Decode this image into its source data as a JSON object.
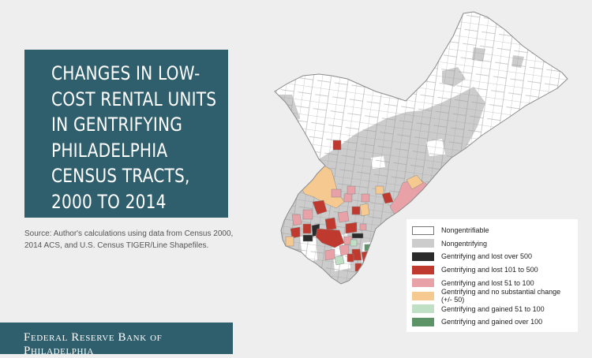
{
  "title": "CHANGES IN LOW-COST RENTAL UNITS IN GENTRIFYING PHILADELPHIA CENSUS TRACTS, 2000 TO 2014",
  "source": "Source: Author's calculations using data from Census 2000, 2014 ACS, and U.S. Census TIGER/Line Shapefiles.",
  "publisher": "Federal Reserve Bank of Philadelphia",
  "legend": [
    {
      "label": "Nongentrifiable",
      "color": "#ffffff"
    },
    {
      "label": "Nongentrifying",
      "color": "#cccccc"
    },
    {
      "label": "Gentrifying and lost over 500",
      "color": "#2b2b2b"
    },
    {
      "label": "Gentrifying and lost 101 to 500",
      "color": "#c0392f"
    },
    {
      "label": "Gentrifying and lost 51 to 100",
      "color": "#e8a1a6"
    },
    {
      "label": "Gentrifying and no substantial change (+/- 50)",
      "color": "#f5c98f"
    },
    {
      "label": "Gentrifying and gained 51 to 100",
      "color": "#bfe0c4"
    },
    {
      "label": "Gentrifying and gained over 100",
      "color": "#5d9467"
    }
  ]
}
